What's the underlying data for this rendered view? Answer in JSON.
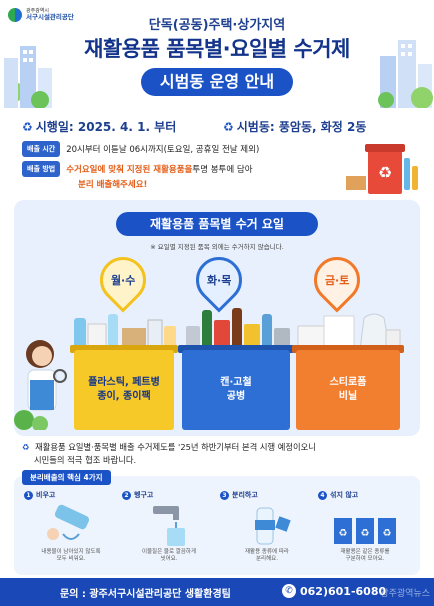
{
  "org": {
    "top": "광주광역시",
    "name": "서구시설관리공단"
  },
  "header": {
    "subtitle": "단독(공동)주택·상가지역",
    "title": "재활용품 품목별·요일별 수거제",
    "pill": "시범동 운영 안내"
  },
  "info": {
    "start_label": "시행일",
    "start_value": ": 2025. 4. 1. 부터",
    "area_label": "시범동",
    "area_value": ": 풍암동, 화정 2동",
    "time_tag": "배출 시간",
    "time_value": "20시부터 이튿날 06시까지(토요일, 공휴일 전날 제외)",
    "method_tag": "배출 방법",
    "method_part1": "수거요일에 맞춰 지정된 재활용품을",
    "method_part2": " 투명 봉투에 담아",
    "method_line2": "분리 배출해주세요!"
  },
  "guide": {
    "title": "재활용품 품목별 수거 요일",
    "note": "※ 요일별 지정된 품목 외에는 수거하지 않습니다.",
    "days": [
      {
        "day": "월·수",
        "line1": "플라스틱, 페트병",
        "line2": "종이, 종이팩"
      },
      {
        "day": "화·목",
        "line1": "캔·고철",
        "line2": "공병"
      },
      {
        "day": "금·토",
        "line1": "스티로폼",
        "line2": "비닐"
      }
    ]
  },
  "notice": {
    "line1": "재활용품 요일별·품목별 배출 수거제도를 '25년 하반기부터 본격 시행 예정이오니",
    "line2": "시민들의 적극 협조 바랍니다."
  },
  "tips": {
    "title": "분리배출의 핵심 4가지",
    "items": [
      {
        "num": "1",
        "label": "비우고",
        "desc1": "내용물이 남아있지 않도록",
        "desc2": "모두 비워요."
      },
      {
        "num": "2",
        "label": "헹구고",
        "desc1": "이물질은 물로 깔끔하게",
        "desc2": "씻어요."
      },
      {
        "num": "3",
        "label": "분리하고",
        "desc1": "재활용 종류에 따라",
        "desc2": "분리해요."
      },
      {
        "num": "4",
        "label": "섞지 않고",
        "desc1": "재활용은 같은 종류를",
        "desc2": "구분하여 모아요."
      }
    ]
  },
  "footer": {
    "label": "문의 : 광주서구시설관리공단 생활환경팀",
    "phone": "062)601-6080",
    "watermark": "광주광역뉴스"
  },
  "colors": {
    "primary": "#1b53c7",
    "navy": "#13348a",
    "yellow": "#f7c928",
    "blue": "#2e6fd6",
    "orange": "#f27e30",
    "accent_text": "#e35d17"
  }
}
